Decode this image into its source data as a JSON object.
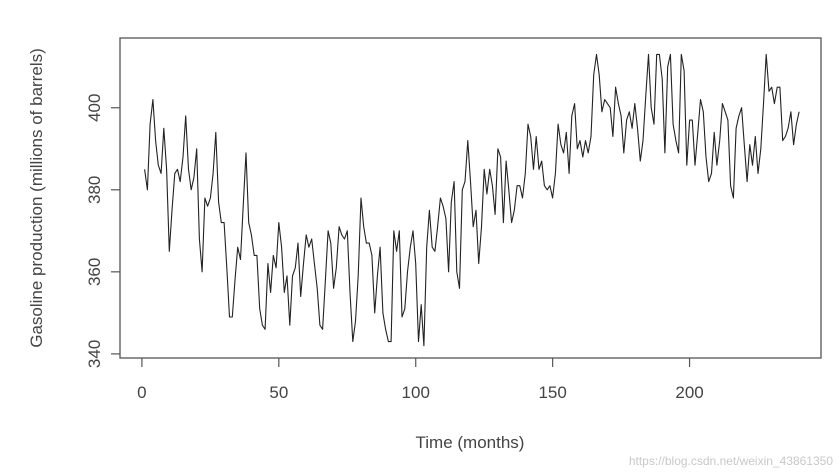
{
  "chart_data": {
    "type": "line",
    "title": "",
    "xlabel": "Time (months)",
    "ylabel": "Gasoline production (millions of barrels)",
    "xlim": [
      -8,
      248
    ],
    "ylim": [
      339,
      417
    ],
    "xticks": [
      0,
      50,
      100,
      150,
      200
    ],
    "yticks": [
      340,
      360,
      380,
      400
    ],
    "grid": false,
    "series": [
      {
        "x": [
          1,
          2,
          3,
          4,
          5,
          6,
          7,
          8,
          9,
          10,
          11,
          12,
          13,
          14,
          15,
          16,
          17,
          18,
          19,
          20,
          21,
          22,
          23,
          24,
          25,
          26,
          27,
          28,
          29,
          30,
          31,
          32,
          33,
          34,
          35,
          36,
          37,
          38,
          39,
          40,
          41,
          42,
          43,
          44,
          45,
          46,
          47,
          48,
          49,
          50,
          51,
          52,
          53,
          54,
          55,
          56,
          57,
          58,
          59,
          60,
          61,
          62,
          63,
          64,
          65,
          66,
          67,
          68,
          69,
          70,
          71,
          72,
          73,
          74,
          75,
          76,
          77,
          78,
          79,
          80,
          81,
          82,
          83,
          84,
          85,
          86,
          87,
          88,
          89,
          90,
          91,
          92,
          93,
          94,
          95,
          96,
          97,
          98,
          99,
          100,
          101,
          102,
          103,
          104,
          105,
          106,
          107,
          108,
          109,
          110,
          111,
          112,
          113,
          114,
          115,
          116,
          117,
          118,
          119,
          120,
          121,
          122,
          123,
          124,
          125,
          126,
          127,
          128,
          129,
          130,
          131,
          132,
          133,
          134,
          135,
          136,
          137,
          138,
          139,
          140,
          141,
          142,
          143,
          144,
          145,
          146,
          147,
          148,
          149,
          150,
          151,
          152,
          153,
          154,
          155,
          156,
          157,
          158,
          159,
          160,
          161,
          162,
          163,
          164,
          165,
          166,
          167,
          168,
          169,
          170,
          171,
          172,
          173,
          174,
          175,
          176,
          177,
          178,
          179,
          180,
          181,
          182,
          183,
          184,
          185,
          186,
          187,
          188,
          189,
          190,
          191,
          192,
          193,
          194,
          195,
          196,
          197,
          198,
          199,
          200,
          201,
          202,
          203,
          204,
          205,
          206,
          207,
          208,
          209,
          210,
          211,
          212,
          213,
          214,
          215,
          216,
          217,
          218,
          219,
          220,
          221,
          222,
          223,
          224,
          225,
          226,
          227,
          228,
          229,
          230,
          231,
          232,
          233,
          234,
          235,
          236,
          237,
          238,
          239,
          240
        ],
        "y": [
          385,
          380,
          396,
          402,
          392,
          386,
          384,
          395,
          385,
          365,
          375,
          384,
          385,
          382,
          388,
          398,
          385,
          380,
          383,
          390,
          368,
          360,
          378,
          376,
          378,
          384,
          394,
          377,
          372,
          372,
          361,
          349,
          349,
          358,
          366,
          363,
          376,
          389,
          372,
          369,
          364,
          364,
          351,
          347,
          346,
          362,
          355,
          364,
          361,
          372,
          366,
          355,
          359,
          347,
          359,
          361,
          367,
          354,
          362,
          369,
          366,
          368,
          362,
          356,
          347,
          346,
          358,
          370,
          367,
          356,
          361,
          371,
          369,
          368,
          370,
          355,
          343,
          348,
          359,
          378,
          371,
          367,
          367,
          364,
          350,
          359,
          366,
          350,
          346,
          343,
          343,
          370,
          365,
          370,
          349,
          351,
          360,
          366,
          370,
          362,
          343,
          352,
          342,
          366,
          375,
          366,
          365,
          371,
          378,
          376,
          373,
          360,
          377,
          382,
          360,
          356,
          380,
          382,
          392,
          382,
          371,
          375,
          362,
          371,
          385,
          379,
          385,
          381,
          374,
          390,
          388,
          372,
          387,
          380,
          372,
          375,
          381,
          381,
          378,
          384,
          396,
          393,
          385,
          393,
          385,
          387,
          381,
          380,
          381,
          378,
          384,
          396,
          391,
          389,
          394,
          384,
          398,
          401,
          390,
          392,
          388,
          392,
          389,
          393,
          408,
          413,
          408,
          399,
          402,
          401,
          400,
          393,
          405,
          401,
          398,
          389,
          397,
          399,
          395,
          401,
          395,
          387,
          392,
          403,
          413,
          400,
          396,
          413,
          413,
          407,
          389,
          410,
          413,
          396,
          392,
          389,
          413,
          409,
          386,
          397,
          397,
          386,
          394,
          402,
          399,
          388,
          382,
          384,
          394,
          386,
          392,
          401,
          399,
          397,
          381,
          378,
          395,
          398,
          400,
          391,
          382,
          391,
          386,
          393,
          384,
          390,
          401,
          413,
          404,
          405,
          401,
          405,
          405,
          392,
          393,
          395,
          399,
          391,
          396,
          399
        ]
      }
    ],
    "line_color": "#222222",
    "axis_color": "#555555"
  },
  "watermark": "https://blog.csdn.net/weixin_43861350"
}
